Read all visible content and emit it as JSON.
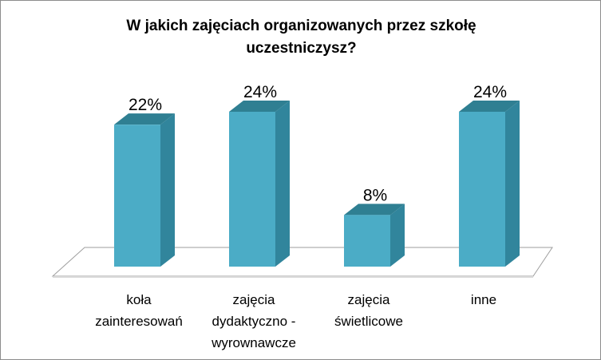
{
  "chart_data": {
    "type": "bar",
    "title": "W jakich zajęciach organizowanych  przez szkołę uczestniczysz?",
    "categories": [
      [
        "koła",
        "zainteresowań"
      ],
      [
        "zajęcia",
        "dydaktyczno -",
        "wyrownawcze"
      ],
      [
        "zajęcia",
        "świetlicowe"
      ],
      [
        "inne"
      ]
    ],
    "values": [
      22,
      24,
      8,
      24
    ],
    "value_labels": [
      "22%",
      "24%",
      "8%",
      "24%"
    ],
    "unit": "%",
    "ylim": [
      0,
      24
    ],
    "grid": false,
    "legend": "none",
    "style": "3d-column"
  },
  "colors": {
    "bar_front": "#4bacc6",
    "bar_side": "#31859c",
    "bar_top": "#2f7f92",
    "floor_fill": "#ffffff",
    "floor_stroke": "#9e9e9e"
  }
}
